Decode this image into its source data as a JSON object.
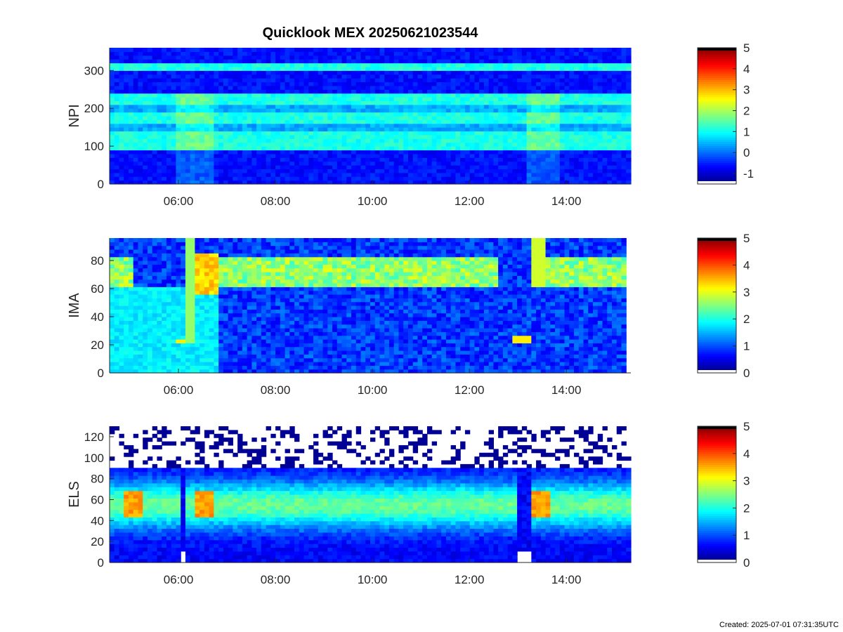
{
  "title": "Quicklook MEX 20250621023544",
  "footer": "Created: 2025-07-01 07:31:35UTC",
  "chart_data": [
    {
      "type": "heatmap",
      "ylabel": "NPI",
      "xlim_hours": [
        4.58,
        15.33
      ],
      "x_ticks": [
        "06:00",
        "08:00",
        "10:00",
        "12:00",
        "14:00"
      ],
      "ylim": [
        0,
        360
      ],
      "y_ticks": [
        0,
        100,
        200,
        300
      ],
      "colorbar": {
        "min": -1.5,
        "max": 5,
        "ticks": [
          -1,
          0,
          1,
          2,
          3,
          4,
          5
        ]
      },
      "colormap": "jet"
    },
    {
      "type": "heatmap",
      "ylabel": "IMA",
      "xlim_hours": [
        4.58,
        15.33
      ],
      "x_ticks": [
        "06:00",
        "08:00",
        "10:00",
        "12:00",
        "14:00"
      ],
      "ylim": [
        0,
        96
      ],
      "y_ticks": [
        0,
        20,
        40,
        60,
        80
      ],
      "colorbar": {
        "min": 0,
        "max": 5,
        "ticks": [
          0,
          1,
          2,
          3,
          4,
          5
        ]
      },
      "colormap": "jet"
    },
    {
      "type": "heatmap",
      "ylabel": "ELS",
      "xlim_hours": [
        4.58,
        15.33
      ],
      "x_ticks": [
        "06:00",
        "08:00",
        "10:00",
        "12:00",
        "14:00"
      ],
      "ylim": [
        0,
        130
      ],
      "y_ticks": [
        0,
        20,
        40,
        60,
        80,
        100,
        120
      ],
      "colorbar": {
        "min": 0,
        "max": 5,
        "ticks": [
          0,
          1,
          2,
          3,
          4,
          5
        ]
      },
      "colormap": "jet"
    }
  ]
}
